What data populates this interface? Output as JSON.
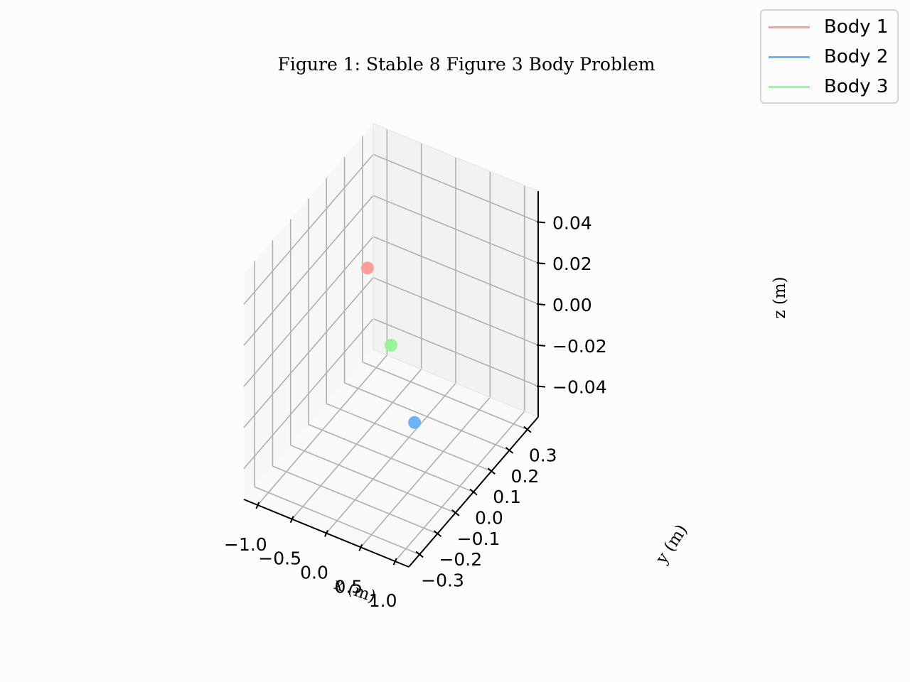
{
  "chart_data": {
    "type": "scatter",
    "projection": "3d",
    "title": "Figure 1: Stable 8 Figure 3 Body Problem",
    "xlabel": "x (m)",
    "ylabel": "y (m)",
    "zlabel": "z (m)",
    "xlim": [
      -1.2,
      1.2
    ],
    "ylim": [
      -0.36,
      0.36
    ],
    "zlim": [
      -0.055,
      0.055
    ],
    "xticks": [
      -1.0,
      -0.5,
      0.0,
      0.5,
      1.0
    ],
    "yticks": [
      -0.3,
      -0.2,
      -0.1,
      0.0,
      0.1,
      0.2,
      0.3
    ],
    "zticks": [
      -0.04,
      -0.02,
      0.0,
      0.02,
      0.04
    ],
    "xtick_labels": [
      "−1.0",
      "−0.5",
      "0.0",
      "0.5",
      "1.0"
    ],
    "ytick_labels": [
      "−0.3",
      "−0.2",
      "−0.1",
      "0.0",
      "0.1",
      "0.2",
      "0.3"
    ],
    "ztick_labels": [
      "−0.04",
      "−0.02",
      "0.00",
      "0.02",
      "0.04"
    ],
    "grid": true,
    "legend_position": "top-right",
    "series": [
      {
        "name": "Body 1",
        "color": "#ff9e9a",
        "x": -0.97,
        "y": 0.24,
        "z": 0.0
      },
      {
        "name": "Body 2",
        "color": "#6cb4f5",
        "x": 0.97,
        "y": -0.24,
        "z": 0.0
      },
      {
        "name": "Body 3",
        "color": "#97f597",
        "x": 0.0,
        "y": 0.0,
        "z": 0.0
      }
    ]
  }
}
